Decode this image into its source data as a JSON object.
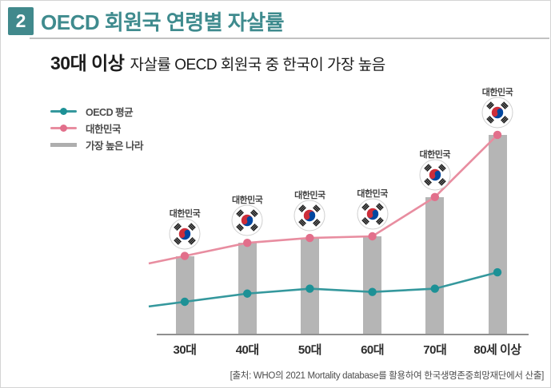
{
  "header": {
    "index_badge": "2",
    "title": "OECD 회원국 연령별 자살률"
  },
  "subtitle": {
    "emphasis": "30대 이상",
    "rest": "자살률 OECD 회원국 중 한국이 가장 높음"
  },
  "legend": {
    "items": [
      {
        "label": "OECD 평균",
        "type": "line-dot",
        "line_color": "#35989d",
        "dot_color": "#1d9196"
      },
      {
        "label": "대한민국",
        "type": "line-dot",
        "line_color": "#e88da0",
        "dot_color": "#e26f8b"
      },
      {
        "label": "가장 높은 나라",
        "type": "bar",
        "line_color": "#aeaeae",
        "dot_color": "#aeaeae"
      }
    ]
  },
  "chart_data": {
    "type": "bar",
    "note": "combined bar + line chart, values estimated from pixel heights (no y-axis shown), suicide rate per age group",
    "categories": [
      "30대",
      "40대",
      "50대",
      "60대",
      "70대",
      "80세 이상"
    ],
    "series": [
      {
        "name": "OECD 평균",
        "type": "line",
        "color": "#35989d",
        "values": [
          10,
          12.5,
          14,
          13,
          14,
          19
        ]
      },
      {
        "name": "대한민국",
        "type": "line",
        "color": "#e88da0",
        "values": [
          24,
          28,
          29.5,
          30,
          42,
          61
        ]
      },
      {
        "name": "가장 높은 나라",
        "type": "bar",
        "color": "#b5b5b5",
        "values": [
          24,
          28,
          29.5,
          30,
          42,
          61
        ]
      }
    ],
    "bar_annotation_label": "대한민국",
    "bar_annotation_icon": "south-korea-flag",
    "title": "OECD 회원국 연령별 자살률",
    "xlabel": "",
    "ylabel": "",
    "ylim": [
      0,
      75
    ],
    "grid": false,
    "legend_position": "top-left"
  },
  "footer": {
    "source": "[출처: WHO의 2021 Mortality database를 활용하여 한국생명존중희망재단에서 산출]"
  },
  "colors": {
    "accent_teal": "#3f8b8e",
    "bar_gray": "#b5b5b5",
    "korea_line_pink": "#e88da0",
    "oecd_line_teal": "#35989d",
    "flag_red": "#cd2e3a",
    "flag_blue": "#0047a0"
  }
}
